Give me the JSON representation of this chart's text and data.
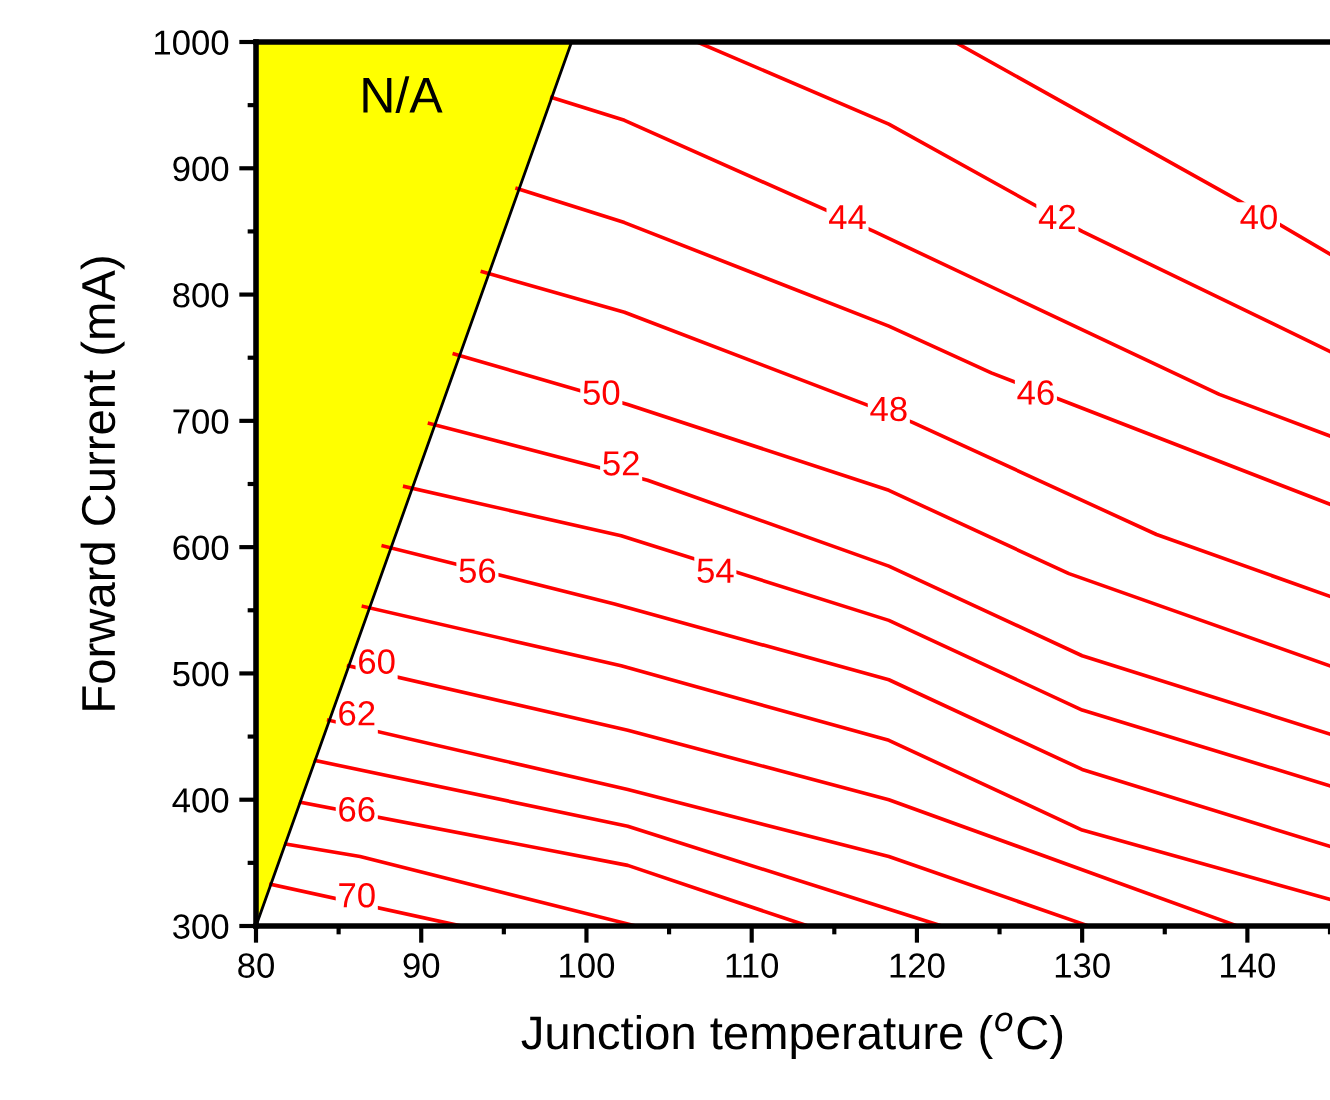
{
  "chart_data": {
    "type": "line",
    "xlabel": "Junction temperature ($^{o}$C)",
    "ylabel": "Forward Current (mA)",
    "xlim": [
      80,
      145
    ],
    "ylim": [
      300,
      1000
    ],
    "xticks": [
      80,
      90,
      100,
      110,
      120,
      130,
      140
    ],
    "yticks": [
      300,
      400,
      500,
      600,
      700,
      800,
      900,
      1000
    ],
    "grid": false,
    "legend": false,
    "marker": "none",
    "line_style": "solid",
    "series": [
      {
        "type": "area",
        "color": "#ffff00",
        "x": [
          80,
          99.1
        ],
        "values": [
          300,
          1000
        ]
      },
      {
        "color": "#ff0000",
        "x": [
          122.3,
          139.4,
          145
        ],
        "values": [
          1000,
          875,
          832
        ]
      },
      {
        "color": "#ff0000",
        "x": [
          106.7,
          118.3,
          130.0,
          145
        ],
        "values": [
          1000,
          935,
          850,
          755
        ]
      },
      {
        "color": "#ff0000",
        "x": [
          97.9,
          102.3,
          117.4,
          138.3,
          145
        ],
        "values": [
          956,
          938,
          850,
          721,
          688
        ]
      },
      {
        "color": "#ff0000",
        "x": [
          95.8,
          102.3,
          118.3,
          124.5,
          145
        ],
        "values": [
          884,
          857,
          775,
          738,
          634
        ]
      },
      {
        "color": "#ff0000",
        "x": [
          93.7,
          102.3,
          119.7,
          134.5,
          145
        ],
        "values": [
          818,
          786,
          699,
          610,
          561
        ]
      },
      {
        "color": "#ff0000",
        "x": [
          92.0,
          102.5,
          118.3,
          129.2,
          145
        ],
        "values": [
          753,
          713,
          645,
          579,
          506
        ]
      },
      {
        "color": "#ff0000",
        "x": [
          90.5,
          103.7,
          118.3,
          130,
          145
        ],
        "values": [
          698,
          653,
          585,
          514,
          452
        ]
      },
      {
        "color": "#ff0000",
        "x": [
          89.0,
          102.1,
          118.3,
          130,
          145
        ],
        "values": [
          648,
          609,
          542,
          471,
          411
        ]
      },
      {
        "color": "#ff0000",
        "x": [
          87.7,
          101.7,
          118.3,
          130,
          145
        ],
        "values": [
          601,
          555,
          495,
          424,
          363
        ]
      },
      {
        "color": "#ff0000",
        "x": [
          86.5,
          102.1,
          118.3,
          130,
          145
        ],
        "values": [
          553,
          506,
          447,
          376,
          321
        ]
      },
      {
        "color": "#ff0000",
        "x": [
          85.6,
          102.5,
          118.3,
          139.4
        ],
        "values": [
          506,
          455,
          400,
          300
        ]
      },
      {
        "color": "#ff0000",
        "x": [
          84.4,
          102.5,
          118.3,
          130.4
        ],
        "values": [
          463,
          408,
          355,
          300
        ]
      },
      {
        "color": "#ff0000",
        "x": [
          83.6,
          102.5,
          121.5
        ],
        "values": [
          431,
          379,
          300
        ]
      },
      {
        "color": "#ff0000",
        "x": [
          82.7,
          102.5,
          113.4
        ],
        "values": [
          398,
          348,
          300
        ]
      },
      {
        "color": "#ff0000",
        "x": [
          81.8,
          86.3,
          103.0
        ],
        "values": [
          365,
          355,
          300
        ]
      },
      {
        "color": "#ff0000",
        "x": [
          80.9,
          92.4
        ],
        "values": [
          333,
          300
        ]
      }
    ],
    "annotations": [
      "N/A",
      {
        "text": "40",
        "x": 140.7,
        "y": 859
      },
      {
        "text": "42",
        "x": 128.5,
        "y": 859
      },
      {
        "text": "44",
        "x": 115.8,
        "y": 859
      },
      {
        "text": "46",
        "x": 127.2,
        "y": 720
      },
      {
        "text": "48",
        "x": 118.3,
        "y": 707
      },
      {
        "text": "50",
        "x": 100.9,
        "y": 720
      },
      {
        "text": "52",
        "x": 102.1,
        "y": 664
      },
      {
        "text": "54",
        "x": 107.8,
        "y": 579
      },
      {
        "text": "56",
        "x": 93.4,
        "y": 579
      },
      {
        "text": "60",
        "x": 87.3,
        "y": 507
      },
      {
        "text": "62",
        "x": 86.1,
        "y": 466
      },
      {
        "text": "66",
        "x": 86.1,
        "y": 390
      },
      {
        "text": "70",
        "x": 86.1,
        "y": 322
      }
    ]
  }
}
